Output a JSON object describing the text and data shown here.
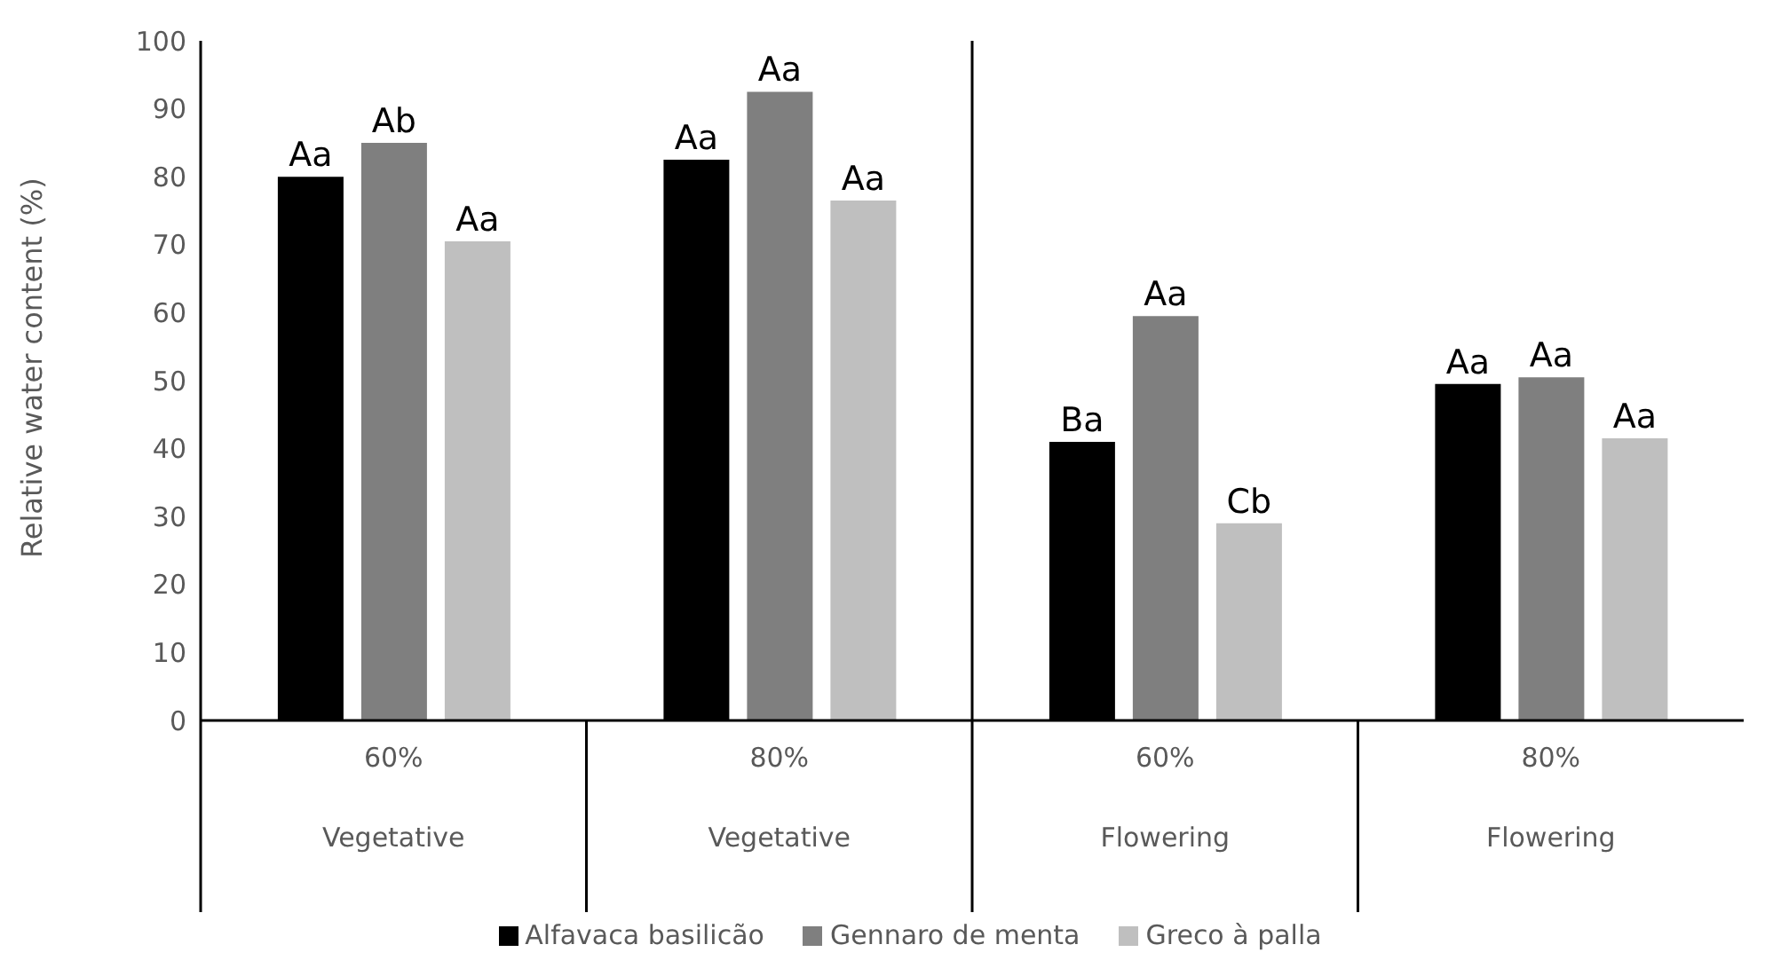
{
  "chart_data": {
    "type": "bar",
    "categories": [
      "60%\nVegetative",
      "80%\nVegetative",
      "60%\nFlowering",
      "80%\nFlowering"
    ],
    "ylabel": "Relative water content (%)",
    "ylim": [
      0,
      100
    ],
    "yticks": [
      0,
      10,
      20,
      30,
      40,
      50,
      60,
      70,
      80,
      90,
      100
    ],
    "grid": false,
    "legend": "bottom",
    "series": [
      {
        "name": "Alfavaca basilicão",
        "color": "#000000",
        "values": [
          80,
          82.5,
          41,
          49.5
        ],
        "value_labels": [
          "Aa",
          "Aa",
          "Ba",
          "Aa"
        ]
      },
      {
        "name": "Gennaro de menta",
        "color": "#7f7f7f",
        "values": [
          85,
          92.5,
          59.5,
          50.5
        ],
        "value_labels": [
          "Ab",
          "Aa",
          "Aa",
          "Aa"
        ]
      },
      {
        "name": "Greco à palla",
        "color": "#bfbfbf",
        "values": [
          70.5,
          76.5,
          29,
          41.5
        ],
        "value_labels": [
          "Aa",
          "Aa",
          "Cb",
          "Aa"
        ]
      }
    ]
  }
}
